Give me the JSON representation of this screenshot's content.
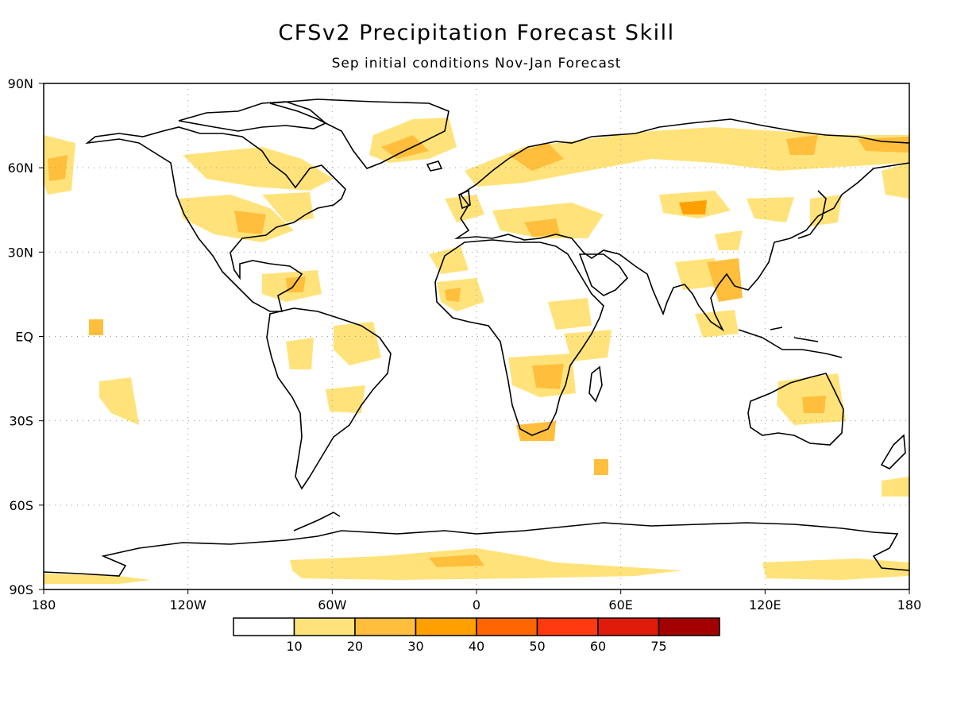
{
  "title": "CFSv2 Precipitation Forecast Skill",
  "subtitle": "Sep initial conditions   Nov-Jan Forecast",
  "lat_labels": [
    "90N",
    "60N",
    "30N",
    "EQ",
    "30S",
    "60S",
    "90S"
  ],
  "lon_labels": [
    "180",
    "120W",
    "60W",
    "0",
    "60E",
    "120E",
    "180"
  ],
  "legend": {
    "labels": [
      "10",
      "20",
      "30",
      "40",
      "50",
      "60",
      "75"
    ],
    "colors": [
      "#ffffff",
      "#ffe37a",
      "#ffbe3c",
      "#ffa000",
      "#ff6600",
      "#ff3a10",
      "#e01b0a",
      "#a50000"
    ]
  },
  "map_colors": {
    "land_outline": "#000000",
    "grid": "#999999"
  }
}
